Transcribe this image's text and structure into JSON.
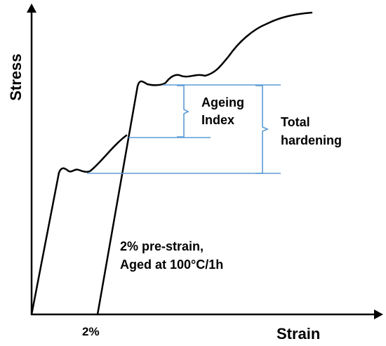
{
  "axes": {
    "y_title": "Stress",
    "x_title": "Strain",
    "x_tick": "2%"
  },
  "annotations": {
    "ageing_index": [
      "Ageing",
      "Index"
    ],
    "total_hardening": [
      "Total",
      "hardening"
    ],
    "condition": [
      "2% pre-strain,",
      "Aged at 100°C/1h"
    ]
  },
  "colors": {
    "curve": "#000000",
    "axes": "#000000",
    "guides": "#5b9bd5"
  }
}
